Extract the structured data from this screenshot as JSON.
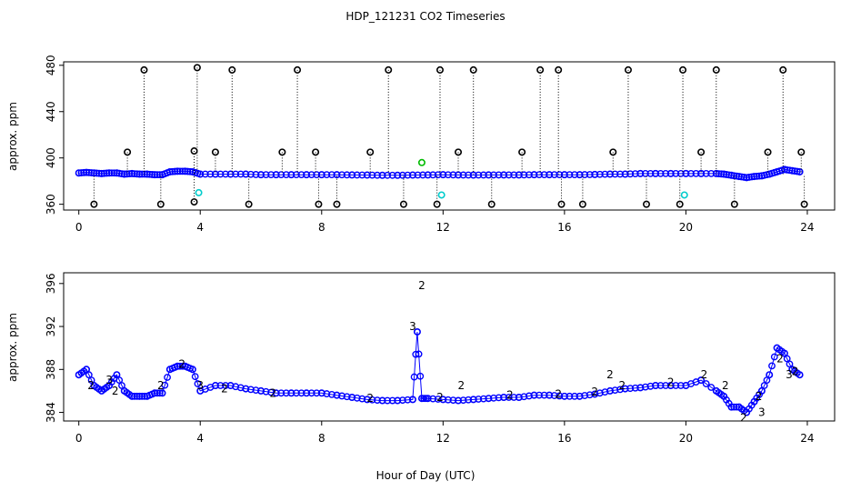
{
  "chart_data": [
    {
      "type": "scatter",
      "title": "HDP_121231  CO2 Timeseries",
      "xlabel": "",
      "ylabel": "approx. ppm",
      "xlim": [
        -0.5,
        24.9
      ],
      "ylim": [
        355,
        483
      ],
      "xticks": [
        0,
        4,
        8,
        12,
        16,
        20,
        24
      ],
      "yticks": [
        360,
        400,
        440,
        480
      ],
      "series": [
        {
          "name": "baseline",
          "color": "#0000ff",
          "x": [
            0,
            0.25,
            0.5,
            0.75,
            1,
            1.25,
            1.5,
            1.75,
            2,
            2.25,
            2.5,
            2.75,
            3,
            3.25,
            3.5,
            3.75,
            4,
            4.5,
            5,
            5.5,
            6,
            6.5,
            7,
            7.5,
            8,
            8.5,
            9,
            9.5,
            10,
            10.5,
            11,
            11.5,
            12,
            12.5,
            13,
            13.5,
            14,
            14.5,
            15,
            15.5,
            16,
            16.5,
            17,
            17.5,
            18,
            18.5,
            19,
            19.5,
            20,
            20.5,
            21,
            21.25,
            21.5,
            21.75,
            22,
            22.25,
            22.5,
            22.75,
            23,
            23.25,
            23.5,
            23.75
          ],
          "y": [
            387,
            387.5,
            387,
            386.5,
            387,
            387,
            386,
            386.5,
            386,
            386,
            385.5,
            385.5,
            388,
            388.5,
            388.5,
            388,
            386,
            386,
            386,
            386,
            385.5,
            385.5,
            385.5,
            385.5,
            385.5,
            385.5,
            385.3,
            385.2,
            385,
            385,
            385.2,
            385.3,
            385.5,
            385.3,
            385.2,
            385.3,
            385.3,
            385.3,
            385.5,
            385.5,
            385.5,
            385.5,
            385.7,
            386,
            386,
            386.5,
            386.5,
            386.5,
            386.5,
            386.5,
            386.5,
            386,
            385,
            384,
            383,
            384,
            384.5,
            386,
            388,
            390,
            389,
            388
          ]
        },
        {
          "name": "high",
          "color": "#000000",
          "x": [
            1.6,
            2.15,
            3.8,
            3.9,
            4.5,
            5.05,
            6.7,
            7.2,
            7.8,
            9.6,
            10.2,
            11.9,
            12.5,
            13.0,
            14.6,
            15.2,
            15.8,
            17.6,
            18.1,
            19.9,
            20.5,
            21.0,
            22.7,
            23.2,
            23.8
          ],
          "y": [
            405,
            476,
            406,
            478,
            405,
            476,
            405,
            476,
            405,
            405,
            476,
            476,
            405,
            476,
            405,
            476,
            476,
            405,
            476,
            476,
            405,
            476,
            405,
            476,
            405
          ]
        },
        {
          "name": "low",
          "color": "#000000",
          "x": [
            0.5,
            2.7,
            3.8,
            5.6,
            7.9,
            8.5,
            10.7,
            11.8,
            13.6,
            15.9,
            16.6,
            18.7,
            19.8,
            21.6,
            23.9
          ],
          "y": [
            360,
            360,
            362,
            360,
            360,
            360,
            360,
            360,
            360,
            360,
            360,
            360,
            360,
            360,
            360
          ]
        },
        {
          "name": "cyan",
          "color": "#00cccc",
          "x": [
            3.95,
            11.95,
            19.95
          ],
          "y": [
            370,
            368,
            368
          ]
        },
        {
          "name": "green",
          "color": "#00bb00",
          "x": [
            11.3
          ],
          "y": [
            396
          ]
        }
      ]
    },
    {
      "type": "scatter",
      "title": "",
      "xlabel": "Hour of Day (UTC)",
      "ylabel": "approx. ppm",
      "xlim": [
        -0.5,
        24.9
      ],
      "ylim": [
        383.2,
        397
      ],
      "xticks": [
        0,
        4,
        8,
        12,
        16,
        20,
        24
      ],
      "yticks": [
        384,
        388,
        392,
        396
      ],
      "series": [
        {
          "name": "3",
          "color": "#0000ff",
          "x": [
            0,
            0.25,
            0.5,
            0.75,
            1,
            1.25,
            1.5,
            1.75,
            2,
            2.25,
            2.5,
            2.75,
            3,
            3.25,
            3.5,
            3.75,
            4,
            4.5,
            5,
            5.5,
            6,
            6.5,
            7,
            7.5,
            8,
            8.5,
            9,
            9.5,
            10,
            10.5,
            11,
            11.15,
            11.3,
            11.5,
            12,
            12.5,
            13,
            13.5,
            14,
            14.5,
            15,
            15.5,
            16,
            16.5,
            17,
            17.5,
            18,
            18.5,
            19,
            19.5,
            20,
            20.5,
            21,
            21.25,
            21.5,
            21.75,
            22,
            22.25,
            22.5,
            22.75,
            23,
            23.25,
            23.5,
            23.75
          ],
          "y": [
            387.5,
            388,
            386.5,
            386,
            386.5,
            387.5,
            386,
            385.5,
            385.5,
            385.5,
            385.8,
            385.8,
            388,
            388.3,
            388.3,
            388,
            386,
            386.5,
            386.5,
            386.2,
            386,
            385.8,
            385.8,
            385.8,
            385.8,
            385.6,
            385.4,
            385.2,
            385.1,
            385.1,
            385.2,
            391.5,
            385.3,
            385.3,
            385.2,
            385.1,
            385.2,
            385.3,
            385.4,
            385.4,
            385.6,
            385.6,
            385.5,
            385.5,
            385.7,
            386,
            386.2,
            386.3,
            386.5,
            386.5,
            386.5,
            387,
            386,
            385.5,
            384.5,
            384.5,
            384,
            385,
            386,
            387.5,
            390,
            389.5,
            388,
            387.5
          ]
        },
        {
          "name": "2",
          "color": "#00bb00",
          "x": [
            0.4,
            1.2,
            2.7,
            3.4,
            4.8,
            6.4,
            9.6,
            11.3,
            11.9,
            12.6,
            14.2,
            15.8,
            17.0,
            17.5,
            17.9,
            19.5,
            20.6,
            21.3,
            21.9,
            22.4,
            23.1,
            23.6
          ],
          "y": [
            386.5,
            386,
            386.5,
            388.5,
            386.2,
            385.8,
            385.3,
            395.8,
            385.4,
            386.5,
            385.6,
            385.7,
            385.9,
            387.5,
            386.5,
            386.8,
            387.5,
            386.5,
            383.5,
            385.5,
            389,
            387.8
          ]
        },
        {
          "name": "3-label",
          "color": "#0000ff",
          "x": [
            1.0,
            4.0,
            11.0,
            22.5,
            23.4
          ],
          "y": [
            387,
            386.5,
            392,
            384,
            387.5
          ]
        }
      ]
    }
  ]
}
